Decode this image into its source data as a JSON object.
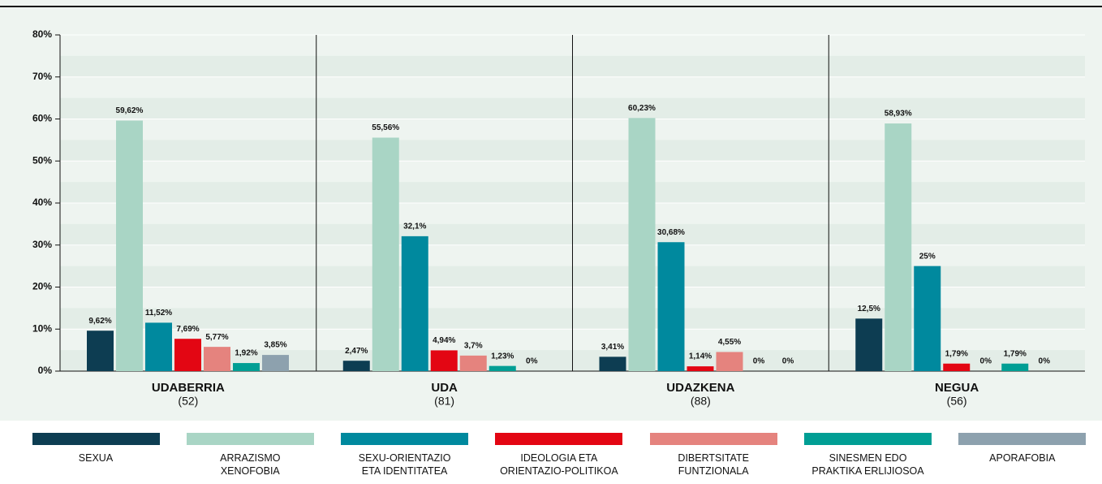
{
  "chart_data": {
    "type": "bar",
    "categories": [
      "UDABERRIA",
      "UDA",
      "UDAZKENA",
      "NEGUA"
    ],
    "category_counts": [
      "(52)",
      "(81)",
      "(88)",
      "(56)"
    ],
    "ylim": [
      0,
      80
    ],
    "yticks": [
      {
        "value": 0,
        "label": "0%"
      },
      {
        "value": 10,
        "label": "10%"
      },
      {
        "value": 20,
        "label": "20%"
      },
      {
        "value": 30,
        "label": "30%"
      },
      {
        "value": 40,
        "label": "40%"
      },
      {
        "value": 50,
        "label": "50%"
      },
      {
        "value": 60,
        "label": "60%"
      },
      {
        "value": 70,
        "label": "70%"
      },
      {
        "value": 80,
        "label": "80%"
      }
    ],
    "series": [
      {
        "name": "SEXUA",
        "color": "#0d3d52",
        "values": [
          9.62,
          2.47,
          3.41,
          12.5
        ],
        "value_labels": [
          "9,62%",
          "2,47%",
          "3,41%",
          "12,5%"
        ]
      },
      {
        "name": "ARRAZISMO\nXENOFOBIA",
        "color": "#a9d5c5",
        "values": [
          59.62,
          55.56,
          60.23,
          58.93
        ],
        "value_labels": [
          "59,62%",
          "55,56%",
          "60,23%",
          "58,93%"
        ]
      },
      {
        "name": "SEXU-ORIENTAZIO\nETA IDENTITATEA",
        "color": "#00899e",
        "values": [
          11.52,
          32.1,
          30.68,
          25
        ],
        "value_labels": [
          "11,52%",
          "32,1%",
          "30,68%",
          "25%"
        ]
      },
      {
        "name": "IDEOLOGIA ETA\nORIENTAZIO-POLITIKOA",
        "color": "#e30613",
        "values": [
          7.69,
          4.94,
          1.14,
          1.79
        ],
        "value_labels": [
          "7,69%",
          "4,94%",
          "1,14%",
          "1,79%"
        ]
      },
      {
        "name": "DIBERTSITATE\nFUNTZIONALA",
        "color": "#e5837e",
        "values": [
          5.77,
          3.7,
          4.55,
          0
        ],
        "value_labels": [
          "5,77%",
          "3,7%",
          "4,55%",
          "0%"
        ]
      },
      {
        "name": "SINESMEN EDO\nPRAKTIKA ERLIJIOSOA",
        "color": "#009e94",
        "values": [
          1.92,
          1.23,
          0,
          1.79
        ],
        "value_labels": [
          "1,92%",
          "1,23%",
          "0%",
          "1,79%"
        ]
      },
      {
        "name": "APORAFOBIA",
        "color": "#8da1ae",
        "values": [
          3.85,
          0,
          0,
          0
        ],
        "value_labels": [
          "3,85%",
          "0%",
          "0%",
          "0%"
        ]
      }
    ]
  }
}
